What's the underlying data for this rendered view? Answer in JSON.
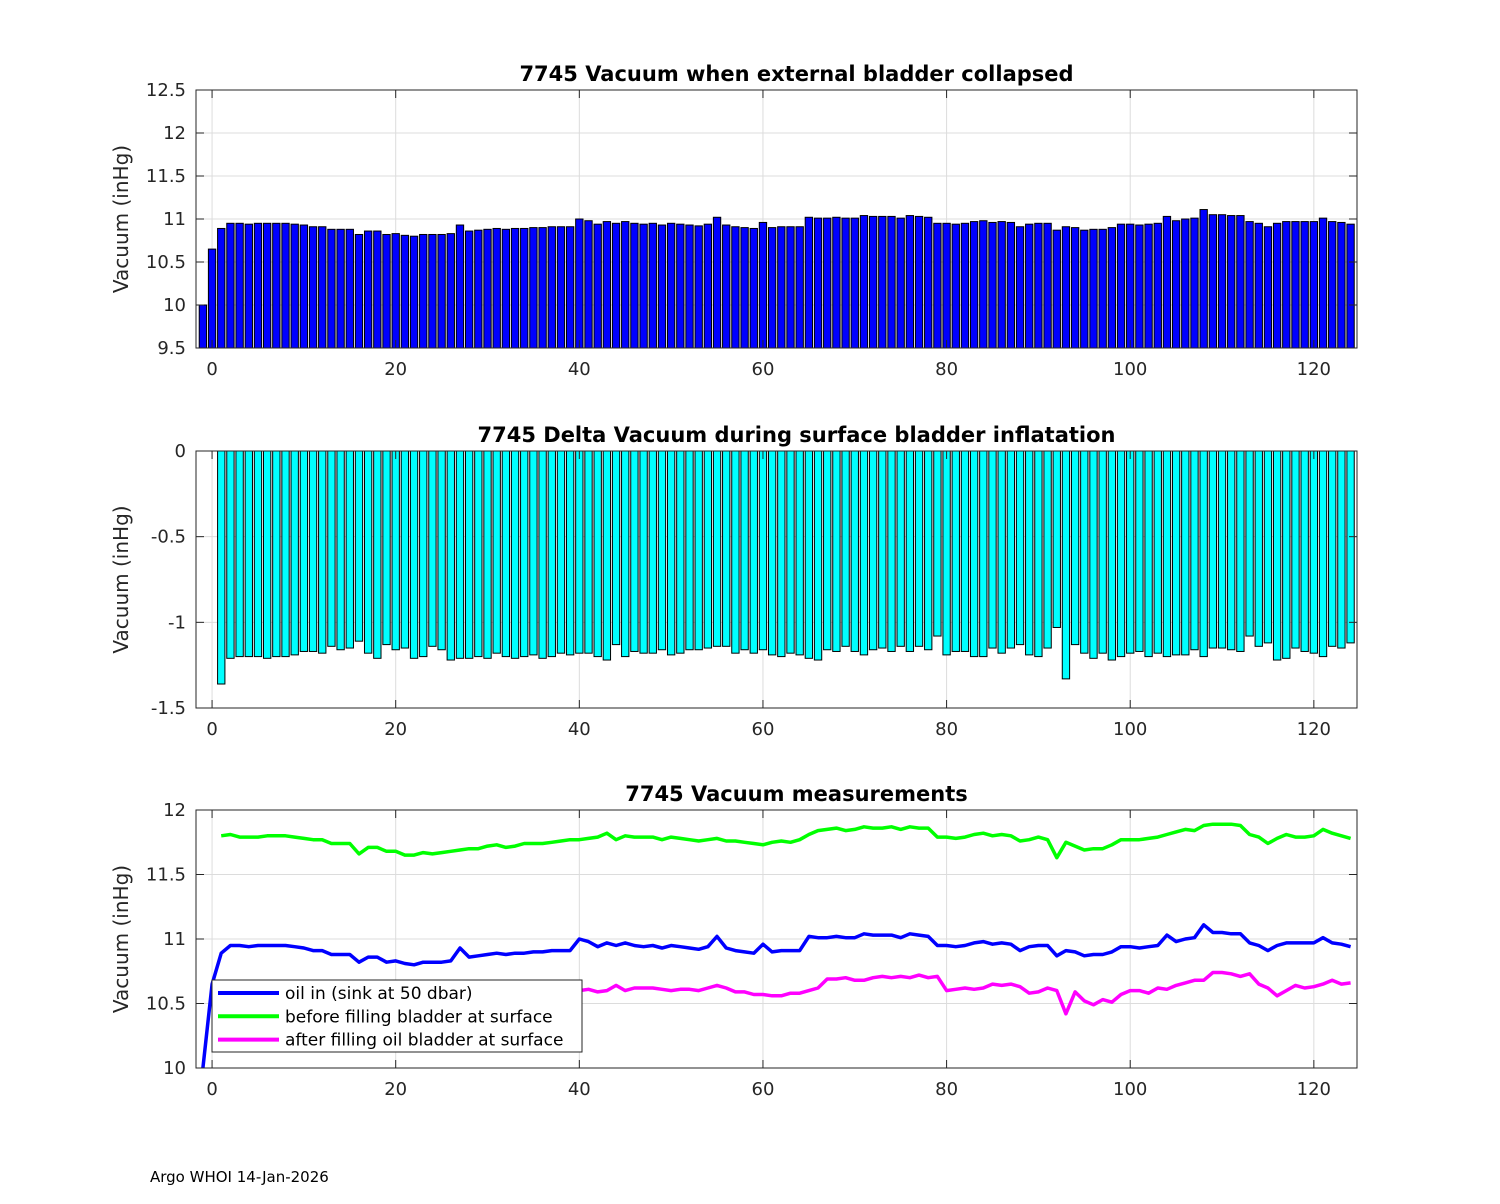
{
  "footer": "Argo WHOI 14-Jan-2026",
  "chart_data": [
    {
      "type": "bar",
      "title": "7745 Vacuum when external bladder collapsed",
      "xlabel": "",
      "ylabel": "Vacuum (inHg)",
      "xlim": [
        -1.75,
        124.7
      ],
      "ylim": [
        9.5,
        12.5
      ],
      "xticks": [
        "0",
        "20",
        "40",
        "60",
        "80",
        "100",
        "120"
      ],
      "yticks": [
        "9.5",
        "10",
        "10.5",
        "11",
        "11.5",
        "12",
        "12.5"
      ],
      "grid": true,
      "bar_color": "#0000ff",
      "x_start": -1,
      "values": [
        10.0,
        10.65,
        10.89,
        10.95,
        10.95,
        10.94,
        10.95,
        10.95,
        10.95,
        10.95,
        10.94,
        10.93,
        10.91,
        10.91,
        10.88,
        10.88,
        10.88,
        10.82,
        10.86,
        10.86,
        10.82,
        10.83,
        10.81,
        10.8,
        10.82,
        10.82,
        10.82,
        10.83,
        10.93,
        10.86,
        10.87,
        10.88,
        10.89,
        10.88,
        10.89,
        10.89,
        10.9,
        10.9,
        10.91,
        10.91,
        10.91,
        11.0,
        10.98,
        10.94,
        10.97,
        10.95,
        10.97,
        10.95,
        10.94,
        10.95,
        10.93,
        10.95,
        10.94,
        10.93,
        10.92,
        10.94,
        11.02,
        10.93,
        10.91,
        10.9,
        10.89,
        10.96,
        10.9,
        10.91,
        10.91,
        10.91,
        11.02,
        11.01,
        11.01,
        11.02,
        11.01,
        11.01,
        11.04,
        11.03,
        11.03,
        11.03,
        11.01,
        11.04,
        11.03,
        11.02,
        10.95,
        10.95,
        10.94,
        10.95,
        10.97,
        10.98,
        10.96,
        10.97,
        10.96,
        10.91,
        10.94,
        10.95,
        10.95,
        10.87,
        10.91,
        10.9,
        10.87,
        10.88,
        10.88,
        10.9,
        10.94,
        10.94,
        10.93,
        10.94,
        10.95,
        11.03,
        10.98,
        11.0,
        11.01,
        11.11,
        11.05,
        11.05,
        11.04,
        11.04,
        10.97,
        10.95,
        10.91,
        10.95,
        10.97,
        10.97,
        10.97,
        10.97,
        11.01,
        10.97,
        10.96,
        10.94
      ]
    },
    {
      "type": "bar",
      "title": "7745 Delta Vacuum during surface bladder inflatation",
      "xlabel": "",
      "ylabel": "Vacuum (inHg)",
      "xlim": [
        -1.75,
        124.7
      ],
      "ylim": [
        -1.5,
        0
      ],
      "xticks": [
        "0",
        "20",
        "40",
        "60",
        "80",
        "100",
        "120"
      ],
      "yticks": [
        "-1.5",
        "-1",
        "-0.5",
        "0"
      ],
      "grid": true,
      "bar_color": "#00ffff",
      "x_start": 1,
      "values": [
        -1.36,
        -1.21,
        -1.2,
        -1.2,
        -1.2,
        -1.21,
        -1.2,
        -1.2,
        -1.19,
        -1.17,
        -1.17,
        -1.18,
        -1.14,
        -1.16,
        -1.15,
        -1.11,
        -1.18,
        -1.21,
        -1.13,
        -1.16,
        -1.15,
        -1.21,
        -1.2,
        -1.14,
        -1.16,
        -1.22,
        -1.21,
        -1.21,
        -1.2,
        -1.21,
        -1.18,
        -1.2,
        -1.21,
        -1.2,
        -1.19,
        -1.21,
        -1.2,
        -1.18,
        -1.19,
        -1.18,
        -1.18,
        -1.2,
        -1.22,
        -1.13,
        -1.2,
        -1.17,
        -1.18,
        -1.18,
        -1.16,
        -1.19,
        -1.18,
        -1.16,
        -1.16,
        -1.15,
        -1.14,
        -1.14,
        -1.18,
        -1.16,
        -1.18,
        -1.16,
        -1.19,
        -1.2,
        -1.18,
        -1.19,
        -1.21,
        -1.22,
        -1.16,
        -1.17,
        -1.14,
        -1.17,
        -1.19,
        -1.16,
        -1.15,
        -1.17,
        -1.14,
        -1.17,
        -1.14,
        -1.16,
        -1.08,
        -1.19,
        -1.17,
        -1.17,
        -1.2,
        -1.2,
        -1.15,
        -1.18,
        -1.15,
        -1.13,
        -1.19,
        -1.2,
        -1.15,
        -1.03,
        -1.33,
        -1.13,
        -1.18,
        -1.21,
        -1.18,
        -1.22,
        -1.2,
        -1.18,
        -1.17,
        -1.2,
        -1.18,
        -1.2,
        -1.19,
        -1.19,
        -1.16,
        -1.2,
        -1.15,
        -1.15,
        -1.16,
        -1.17,
        -1.08,
        -1.14,
        -1.12,
        -1.22,
        -1.21,
        -1.15,
        -1.17,
        -1.18,
        -1.2,
        -1.14,
        -1.15,
        -1.12
      ]
    },
    {
      "type": "line",
      "title": "7745 Vacuum measurements",
      "xlabel": "",
      "ylabel": "Vacuum (inHg)",
      "xlim": [
        -1.75,
        124.7
      ],
      "ylim": [
        10,
        12
      ],
      "xticks": [
        "0",
        "20",
        "40",
        "60",
        "80",
        "100",
        "120"
      ],
      "yticks": [
        "10",
        "10.5",
        "11",
        "11.5",
        "12"
      ],
      "grid": true,
      "legend_position": "bottom-left",
      "series": [
        {
          "name": "oil in (sink at 50 dbar)",
          "color": "#0000ff",
          "x_start": -1,
          "values": [
            10.0,
            10.65,
            10.89,
            10.95,
            10.95,
            10.94,
            10.95,
            10.95,
            10.95,
            10.95,
            10.94,
            10.93,
            10.91,
            10.91,
            10.88,
            10.88,
            10.88,
            10.82,
            10.86,
            10.86,
            10.82,
            10.83,
            10.81,
            10.8,
            10.82,
            10.82,
            10.82,
            10.83,
            10.93,
            10.86,
            10.87,
            10.88,
            10.89,
            10.88,
            10.89,
            10.89,
            10.9,
            10.9,
            10.91,
            10.91,
            10.91,
            11.0,
            10.98,
            10.94,
            10.97,
            10.95,
            10.97,
            10.95,
            10.94,
            10.95,
            10.93,
            10.95,
            10.94,
            10.93,
            10.92,
            10.94,
            11.02,
            10.93,
            10.91,
            10.9,
            10.89,
            10.96,
            10.9,
            10.91,
            10.91,
            10.91,
            11.02,
            11.01,
            11.01,
            11.02,
            11.01,
            11.01,
            11.04,
            11.03,
            11.03,
            11.03,
            11.01,
            11.04,
            11.03,
            11.02,
            10.95,
            10.95,
            10.94,
            10.95,
            10.97,
            10.98,
            10.96,
            10.97,
            10.96,
            10.91,
            10.94,
            10.95,
            10.95,
            10.87,
            10.91,
            10.9,
            10.87,
            10.88,
            10.88,
            10.9,
            10.94,
            10.94,
            10.93,
            10.94,
            10.95,
            11.03,
            10.98,
            11.0,
            11.01,
            11.11,
            11.05,
            11.05,
            11.04,
            11.04,
            10.97,
            10.95,
            10.91,
            10.95,
            10.97,
            10.97,
            10.97,
            10.97,
            11.01,
            10.97,
            10.96,
            10.94
          ]
        },
        {
          "name": "before filling bladder at surface",
          "color": "#00ff00",
          "x_start": 1,
          "values": [
            11.8,
            11.81,
            11.79,
            11.79,
            11.79,
            11.8,
            11.8,
            11.8,
            11.79,
            11.78,
            11.77,
            11.77,
            11.74,
            11.74,
            11.74,
            11.66,
            11.71,
            11.71,
            11.68,
            11.68,
            11.65,
            11.65,
            11.67,
            11.66,
            11.67,
            11.68,
            11.69,
            11.7,
            11.7,
            11.72,
            11.73,
            11.71,
            11.72,
            11.74,
            11.74,
            11.74,
            11.75,
            11.76,
            11.77,
            11.77,
            11.78,
            11.79,
            11.82,
            11.77,
            11.8,
            11.79,
            11.79,
            11.79,
            11.77,
            11.79,
            11.78,
            11.77,
            11.76,
            11.77,
            11.78,
            11.76,
            11.76,
            11.75,
            11.74,
            11.73,
            11.75,
            11.76,
            11.75,
            11.77,
            11.81,
            11.84,
            11.85,
            11.86,
            11.84,
            11.85,
            11.87,
            11.86,
            11.86,
            11.87,
            11.85,
            11.87,
            11.86,
            11.86,
            11.79,
            11.79,
            11.78,
            11.79,
            11.81,
            11.82,
            11.8,
            11.81,
            11.8,
            11.76,
            11.77,
            11.79,
            11.77,
            11.63,
            11.75,
            11.72,
            11.69,
            11.7,
            11.7,
            11.73,
            11.77,
            11.77,
            11.77,
            11.78,
            11.79,
            11.81,
            11.83,
            11.85,
            11.84,
            11.88,
            11.89,
            11.89,
            11.89,
            11.88,
            11.81,
            11.79,
            11.74,
            11.78,
            11.81,
            11.79,
            11.79,
            11.8,
            11.85,
            11.82,
            11.8,
            11.78
          ]
        },
        {
          "name": "after filling oil bladder at surface",
          "color": "#ff00ff",
          "x_start": 1,
          "values": [
            10.44,
            10.6,
            10.59,
            10.59,
            10.59,
            10.59,
            10.6,
            10.6,
            10.6,
            10.61,
            10.6,
            10.6,
            10.6,
            10.58,
            10.59,
            10.56,
            10.54,
            10.5,
            10.55,
            10.52,
            10.5,
            10.44,
            10.47,
            10.52,
            10.51,
            10.46,
            10.48,
            10.49,
            10.5,
            10.51,
            10.56,
            10.51,
            10.51,
            10.54,
            10.55,
            10.53,
            10.55,
            10.59,
            10.58,
            10.6,
            10.61,
            10.59,
            10.6,
            10.64,
            10.6,
            10.62,
            10.62,
            10.62,
            10.61,
            10.6,
            10.61,
            10.61,
            10.6,
            10.62,
            10.64,
            10.62,
            10.59,
            10.59,
            10.57,
            10.57,
            10.56,
            10.56,
            10.58,
            10.58,
            10.6,
            10.62,
            10.69,
            10.69,
            10.7,
            10.68,
            10.68,
            10.7,
            10.71,
            10.7,
            10.71,
            10.7,
            10.72,
            10.7,
            10.71,
            10.6,
            10.61,
            10.62,
            10.61,
            10.62,
            10.65,
            10.64,
            10.65,
            10.63,
            10.58,
            10.59,
            10.62,
            10.6,
            10.42,
            10.59,
            10.52,
            10.49,
            10.53,
            10.51,
            10.57,
            10.6,
            10.6,
            10.58,
            10.62,
            10.61,
            10.64,
            10.66,
            10.68,
            10.68,
            10.74,
            10.74,
            10.73,
            10.71,
            10.73,
            10.65,
            10.62,
            10.56,
            10.6,
            10.64,
            10.62,
            10.63,
            10.65,
            10.68,
            10.65,
            10.66
          ]
        }
      ]
    }
  ]
}
